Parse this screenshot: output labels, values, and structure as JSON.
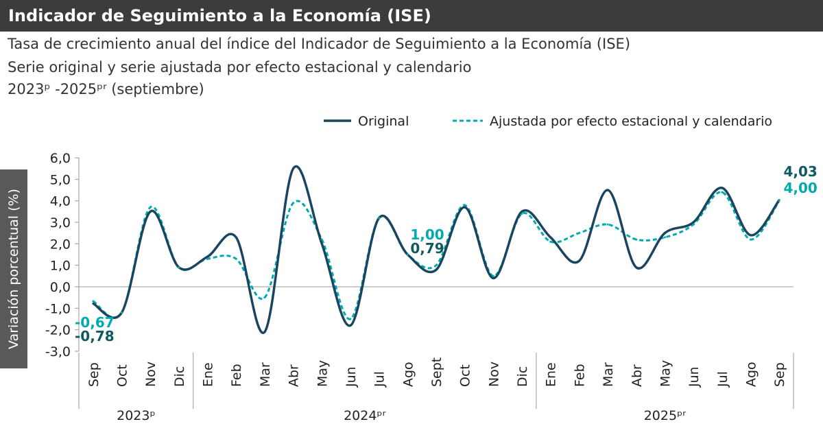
{
  "header": {
    "title": "Indicador de Seguimiento a la Economía (ISE)"
  },
  "subtitle": {
    "line1": "Tasa de crecimiento anual del índice del Indicador de Seguimiento a la Economía (ISE)",
    "line2": "Serie original y serie ajustada por efecto estacional y calendario",
    "line3": "2023ᵖ -2025ᵖʳ (septiembre)"
  },
  "colors": {
    "original": "#1a4560",
    "adjusted": "#00aaae",
    "label_original": "#0e5a63"
  },
  "chart_data": {
    "type": "line",
    "ylabel": "Variación porcentual (%)",
    "ylim": [
      -3,
      6
    ],
    "yticks": [
      "6,0",
      "5,0",
      "4,0",
      "3,0",
      "2,0",
      "1,0",
      "0,0",
      "-1,0",
      "-2,0",
      "-3,0"
    ],
    "grid": false,
    "legend": "top-right",
    "categories": [
      "Sep",
      "Oct",
      "Nov",
      "Dic",
      "Ene",
      "Feb",
      "Mar",
      "Abr",
      "May",
      "Jun",
      "Jul",
      "Ago",
      "Sept",
      "Oct",
      "Nov",
      "Dic",
      "Ene",
      "Feb",
      "Mar",
      "Abr",
      "May",
      "Jun",
      "Jul",
      "Ago",
      "Sep"
    ],
    "groups": [
      {
        "label": "2023ᵖ",
        "count": 4
      },
      {
        "label": "2024ᵖʳ",
        "count": 12
      },
      {
        "label": "2025ᵖʳ",
        "count": 9
      }
    ],
    "series": [
      {
        "name": "Original",
        "style": "solid",
        "values": [
          -0.78,
          -1.2,
          3.5,
          0.9,
          1.4,
          2.3,
          -2.1,
          5.5,
          2.0,
          -1.8,
          3.2,
          1.5,
          0.79,
          3.7,
          0.4,
          3.5,
          2.3,
          1.2,
          4.5,
          0.9,
          2.5,
          3.0,
          4.6,
          2.4,
          4.03
        ]
      },
      {
        "name": "Ajustada por efecto estacional y calendario",
        "style": "dashed",
        "values": [
          -0.67,
          -1.2,
          3.7,
          0.9,
          1.3,
          1.3,
          -0.5,
          3.9,
          2.2,
          -1.5,
          3.2,
          1.5,
          1.0,
          3.8,
          0.5,
          3.4,
          2.1,
          2.5,
          2.9,
          2.2,
          2.3,
          2.9,
          4.4,
          2.2,
          4.0
        ]
      }
    ],
    "data_labels": [
      {
        "series": 0,
        "index": 0,
        "text": "-0,78"
      },
      {
        "series": 1,
        "index": 0,
        "text": "-0,67"
      },
      {
        "series": 0,
        "index": 12,
        "text": "0,79"
      },
      {
        "series": 1,
        "index": 12,
        "text": "1,00"
      },
      {
        "series": 0,
        "index": 24,
        "text": "4,03"
      },
      {
        "series": 1,
        "index": 24,
        "text": "4,00"
      }
    ]
  }
}
